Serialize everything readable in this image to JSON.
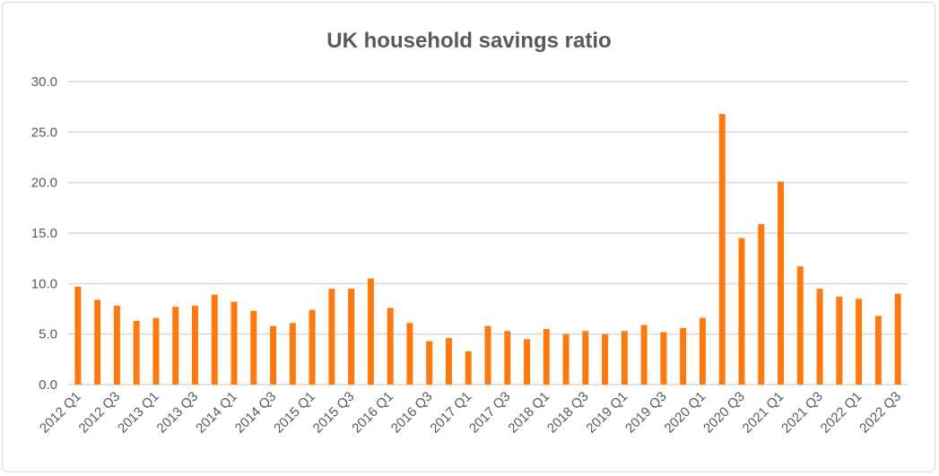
{
  "chart_data": {
    "type": "bar",
    "title": "UK household savings ratio",
    "xlabel": "",
    "ylabel": "",
    "ylim": [
      0,
      30
    ],
    "yticks": [
      "0.0",
      "5.0",
      "10.0",
      "15.0",
      "20.0",
      "25.0",
      "30.0"
    ],
    "grid": true,
    "bar_color": "#ff7a0e",
    "categories": [
      "2012 Q1",
      "2012 Q2",
      "2012 Q3",
      "2012 Q4",
      "2013 Q1",
      "2013 Q2",
      "2013 Q3",
      "2013 Q4",
      "2014 Q1",
      "2014 Q2",
      "2014 Q3",
      "2014 Q4",
      "2015 Q1",
      "2015 Q2",
      "2015 Q3",
      "2015 Q4",
      "2016 Q1",
      "2016 Q2",
      "2016 Q3",
      "2016 Q4",
      "2017 Q1",
      "2017 Q2",
      "2017 Q3",
      "2017 Q4",
      "2018 Q1",
      "2018 Q2",
      "2018 Q3",
      "2018 Q4",
      "2019 Q1",
      "2019 Q2",
      "2019 Q3",
      "2019 Q4",
      "2020 Q1",
      "2020 Q2",
      "2020 Q3",
      "2020 Q4",
      "2021 Q1",
      "2021 Q2",
      "2021 Q3",
      "2021 Q4",
      "2022 Q1",
      "2022 Q2",
      "2022 Q3"
    ],
    "values": [
      9.7,
      8.4,
      7.8,
      6.3,
      6.6,
      7.7,
      7.8,
      8.9,
      8.2,
      7.3,
      5.8,
      6.1,
      7.4,
      9.5,
      9.5,
      10.5,
      7.6,
      6.1,
      4.3,
      4.6,
      3.3,
      5.8,
      5.3,
      4.5,
      5.5,
      5.0,
      5.3,
      5.0,
      5.3,
      5.9,
      5.2,
      5.6,
      6.6,
      26.8,
      14.5,
      15.9,
      20.1,
      11.7,
      9.5,
      8.7,
      8.5,
      6.8,
      9.0
    ]
  }
}
